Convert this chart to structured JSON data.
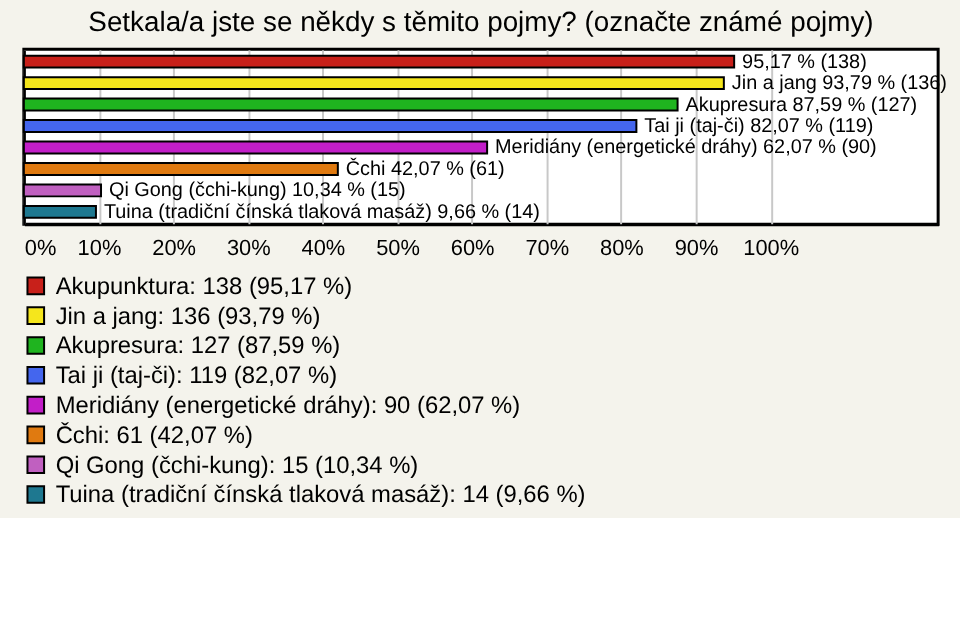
{
  "chart_data": {
    "type": "bar",
    "orientation": "horizontal",
    "title": "Setkala/a jste se někdy s těmito pojmy? (označte známé pojmy)",
    "categories": [
      null,
      null,
      null,
      null,
      null,
      null,
      null,
      null
    ],
    "series": [
      {
        "name": "Akupunktura: 138 (95,17 %)",
        "color": "#c8201a",
        "values": [
          95.17,
          null,
          null,
          null,
          null,
          null,
          null,
          null
        ],
        "value_labels": [
          "95,17 % (138)",
          null,
          null,
          null,
          null,
          null,
          null,
          null
        ]
      },
      {
        "name": "Jin a jang: 136 (93,79 %)",
        "color": "#f5e61c",
        "values": [
          null,
          93.79,
          null,
          null,
          null,
          null,
          null,
          null
        ],
        "value_labels": [
          null,
          "Jin a jang 93,79 % (136)",
          null,
          null,
          null,
          null,
          null,
          null
        ]
      },
      {
        "name": "Akupresura: 127 (87,59 %)",
        "color": "#1fb41f",
        "values": [
          null,
          null,
          87.59,
          null,
          null,
          null,
          null,
          null
        ],
        "value_labels": [
          null,
          null,
          "Akupresura 87,59 % (127)",
          null,
          null,
          null,
          null,
          null
        ]
      },
      {
        "name": "Tai ji (taj-či): 119 (82,07 %)",
        "color": "#4466ee",
        "values": [
          null,
          null,
          null,
          82.07,
          null,
          null,
          null,
          null
        ],
        "value_labels": [
          null,
          null,
          null,
          "Tai ji (taj-či) 82,07 % (119)",
          null,
          null,
          null,
          null
        ]
      },
      {
        "name": "Meridiány (energetické dráhy): 90 (62,07 %)",
        "color": "#c21ec8",
        "values": [
          null,
          null,
          null,
          null,
          62.07,
          null,
          null,
          null
        ],
        "value_labels": [
          null,
          null,
          null,
          null,
          "Meridiány (energetické dráhy) 62,07 % (90)",
          null,
          null,
          null
        ]
      },
      {
        "name": "Čchi: 61 (42,07 %)",
        "color": "#e07a10",
        "values": [
          null,
          null,
          null,
          null,
          null,
          42.07,
          null,
          null
        ],
        "value_labels": [
          null,
          null,
          null,
          null,
          null,
          "Čchi 42,07 % (61)",
          null,
          null
        ]
      },
      {
        "name": "Qi Gong (čchi-kung): 15 (10,34 %)",
        "color": "#c060c0",
        "values": [
          null,
          null,
          null,
          null,
          null,
          null,
          10.34,
          null
        ],
        "value_labels": [
          null,
          null,
          null,
          null,
          null,
          null,
          "Qi Gong (čchi-kung) 10,34 % (15)",
          null
        ]
      },
      {
        "name": "Tuina (tradiční čínská tlaková masáž): 14 (9,66 %)",
        "color": "#1e7890",
        "values": [
          null,
          null,
          null,
          null,
          null,
          null,
          null,
          9.66
        ],
        "value_labels": [
          null,
          null,
          null,
          null,
          null,
          null,
          null,
          "Tuina (tradiční čínská tlaková masáž) 9,66 % (14)"
        ]
      }
    ],
    "xlim": [
      0,
      122.5
    ],
    "xticks": [
      {
        "value": 0,
        "label": "0%"
      },
      {
        "value": 10,
        "label": "10%"
      },
      {
        "value": 20,
        "label": "20%"
      },
      {
        "value": 30,
        "label": "30%"
      },
      {
        "value": 40,
        "label": "40%"
      },
      {
        "value": 50,
        "label": "50%"
      },
      {
        "value": 60,
        "label": "60%"
      },
      {
        "value": 70,
        "label": "70%"
      },
      {
        "value": 80,
        "label": "80%"
      },
      {
        "value": 90,
        "label": "90%"
      },
      {
        "value": 100,
        "label": "100%"
      }
    ],
    "grid": "x",
    "legend": "bottom"
  }
}
